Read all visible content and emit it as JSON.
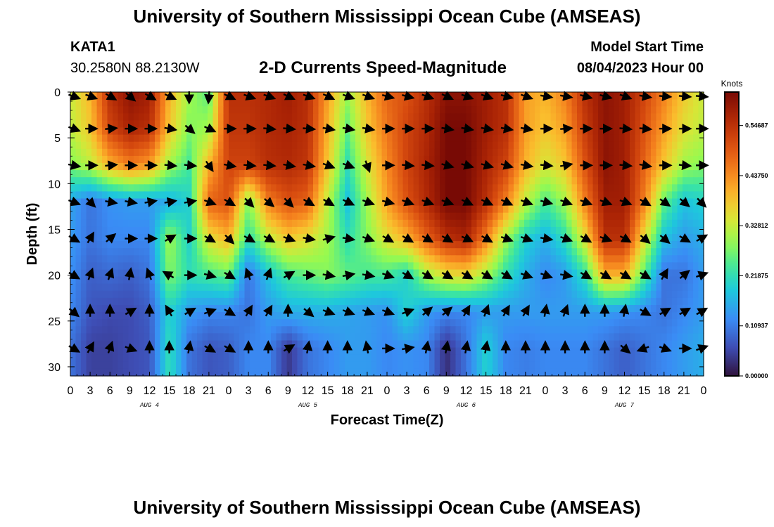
{
  "header": {
    "title": "University of Southern Mississippi Ocean Cube (AMSEAS)",
    "station_id": "KATA1",
    "coords": "30.2580N  88.2130W",
    "chart_title": "2-D Currents Speed-Magnitude",
    "start_label": "Model Start Time",
    "start_value": "08/04/2023 Hour 00"
  },
  "footer": {
    "title": "University of Southern Mississippi Ocean Cube (AMSEAS)"
  },
  "chart_data": {
    "type": "heatmap",
    "title": "2-D Currents Speed-Magnitude",
    "xlabel": "Forecast Time(Z)",
    "ylabel": "Depth (ft)",
    "x_range_hours": [
      0,
      96
    ],
    "ylim": [
      0,
      31
    ],
    "y_ticks": [
      0,
      5,
      10,
      15,
      20,
      25,
      30
    ],
    "x_tick_labels": [
      "0",
      "3",
      "6",
      "9",
      "12",
      "15",
      "18",
      "21",
      "0",
      "3",
      "6",
      "9",
      "12",
      "15",
      "18",
      "21",
      "0",
      "3",
      "6",
      "9",
      "12",
      "15",
      "18",
      "21",
      "0",
      "3",
      "6",
      "9",
      "12",
      "15",
      "18",
      "21",
      "0"
    ],
    "day_labels": [
      {
        "label": "AUG 4",
        "hour": 12
      },
      {
        "label": "AUG 5",
        "hour": 36
      },
      {
        "label": "AUG 6",
        "hour": 60
      },
      {
        "label": "AUG 7",
        "hour": 84
      }
    ],
    "colorbar": {
      "unit": "Knots",
      "min": 0.0,
      "max": 0.62,
      "tick_labels": [
        "0.54687",
        "0.43750",
        "0.32812",
        "0.21875",
        "0.10937",
        "0.00000"
      ],
      "tick_values": [
        0.54687,
        0.4375,
        0.32812,
        0.21875,
        0.10937,
        0.0
      ]
    },
    "depths_ft": [
      0,
      4,
      8,
      12,
      16,
      20,
      24,
      28
    ],
    "hours": [
      0,
      3,
      6,
      9,
      12,
      15,
      18,
      21,
      24,
      27,
      30,
      33,
      36,
      39,
      42,
      45,
      48,
      51,
      54,
      57,
      60,
      63,
      66,
      69,
      72,
      75,
      78,
      81,
      84,
      87,
      90,
      93,
      96
    ],
    "speed_knots": [
      [
        0.33,
        0.4,
        0.55,
        0.6,
        0.58,
        0.4,
        0.3,
        0.25,
        0.55,
        0.55,
        0.56,
        0.58,
        0.55,
        0.42,
        0.3,
        0.4,
        0.48,
        0.5,
        0.55,
        0.6,
        0.6,
        0.58,
        0.55,
        0.42,
        0.4,
        0.45,
        0.55,
        0.6,
        0.58,
        0.52,
        0.45,
        0.38,
        0.33
      ],
      [
        0.32,
        0.38,
        0.52,
        0.57,
        0.55,
        0.38,
        0.28,
        0.3,
        0.54,
        0.54,
        0.56,
        0.57,
        0.55,
        0.4,
        0.26,
        0.38,
        0.46,
        0.52,
        0.56,
        0.62,
        0.62,
        0.58,
        0.55,
        0.42,
        0.38,
        0.42,
        0.53,
        0.6,
        0.58,
        0.5,
        0.42,
        0.35,
        0.32
      ],
      [
        0.28,
        0.32,
        0.4,
        0.45,
        0.42,
        0.3,
        0.24,
        0.4,
        0.52,
        0.52,
        0.55,
        0.56,
        0.54,
        0.38,
        0.22,
        0.34,
        0.44,
        0.52,
        0.57,
        0.62,
        0.62,
        0.57,
        0.52,
        0.4,
        0.34,
        0.38,
        0.5,
        0.6,
        0.58,
        0.48,
        0.38,
        0.3,
        0.28
      ],
      [
        0.15,
        0.1,
        0.13,
        0.14,
        0.14,
        0.16,
        0.2,
        0.48,
        0.5,
        0.28,
        0.45,
        0.5,
        0.48,
        0.32,
        0.18,
        0.3,
        0.42,
        0.5,
        0.56,
        0.62,
        0.62,
        0.55,
        0.45,
        0.32,
        0.24,
        0.3,
        0.45,
        0.58,
        0.58,
        0.45,
        0.26,
        0.18,
        0.2
      ],
      [
        0.14,
        0.1,
        0.12,
        0.12,
        0.12,
        0.3,
        0.2,
        0.35,
        0.4,
        0.22,
        0.32,
        0.38,
        0.35,
        0.3,
        0.22,
        0.28,
        0.35,
        0.4,
        0.48,
        0.55,
        0.57,
        0.45,
        0.3,
        0.2,
        0.16,
        0.22,
        0.35,
        0.55,
        0.55,
        0.35,
        0.18,
        0.14,
        0.16
      ],
      [
        0.13,
        0.08,
        0.09,
        0.08,
        0.1,
        0.28,
        0.22,
        0.24,
        0.26,
        0.1,
        0.18,
        0.24,
        0.26,
        0.28,
        0.26,
        0.24,
        0.24,
        0.2,
        0.3,
        0.35,
        0.36,
        0.3,
        0.22,
        0.16,
        0.12,
        0.14,
        0.22,
        0.4,
        0.4,
        0.25,
        0.1,
        0.1,
        0.14
      ],
      [
        0.12,
        0.07,
        0.06,
        0.06,
        0.08,
        0.2,
        0.14,
        0.12,
        0.12,
        0.1,
        0.14,
        0.16,
        0.16,
        0.16,
        0.15,
        0.14,
        0.13,
        0.2,
        0.14,
        0.12,
        0.12,
        0.14,
        0.14,
        0.14,
        0.14,
        0.14,
        0.14,
        0.14,
        0.13,
        0.12,
        0.1,
        0.12,
        0.14
      ],
      [
        0.1,
        0.05,
        0.05,
        0.06,
        0.07,
        0.22,
        0.1,
        0.07,
        0.08,
        0.12,
        0.12,
        0.04,
        0.1,
        0.12,
        0.14,
        0.14,
        0.12,
        0.13,
        0.12,
        0.03,
        0.1,
        0.2,
        0.12,
        0.11,
        0.12,
        0.12,
        0.12,
        0.1,
        0.08,
        0.1,
        0.12,
        0.14,
        0.16
      ]
    ],
    "arrow_rows_ft": [
      0,
      4,
      8,
      12,
      16,
      20,
      24,
      28
    ],
    "arrow_dirs_deg": [
      [
        20,
        20,
        30,
        40,
        30,
        25,
        90,
        95,
        25,
        20,
        20,
        25,
        20,
        25,
        20,
        20,
        15,
        15,
        20,
        25,
        20,
        20,
        15,
        20,
        10,
        10,
        15,
        15,
        20,
        10,
        5,
        5,
        5
      ],
      [
        20,
        0,
        -5,
        0,
        0,
        10,
        40,
        25,
        0,
        0,
        5,
        5,
        5,
        10,
        10,
        10,
        0,
        0,
        0,
        10,
        10,
        10,
        10,
        10,
        0,
        -5,
        0,
        0,
        5,
        5,
        0,
        0,
        0
      ],
      [
        10,
        0,
        -5,
        0,
        0,
        5,
        5,
        55,
        10,
        5,
        5,
        10,
        10,
        20,
        20,
        70,
        0,
        5,
        5,
        15,
        15,
        15,
        15,
        10,
        5,
        -10,
        0,
        0,
        5,
        10,
        0,
        5,
        0
      ],
      [
        20,
        45,
        10,
        10,
        -10,
        -10,
        -10,
        20,
        30,
        45,
        40,
        45,
        30,
        30,
        25,
        20,
        15,
        20,
        20,
        20,
        25,
        25,
        25,
        20,
        15,
        20,
        20,
        20,
        20,
        30,
        35,
        40,
        45
      ],
      [
        30,
        -60,
        -40,
        0,
        0,
        -30,
        0,
        30,
        45,
        30,
        30,
        20,
        10,
        -15,
        10,
        20,
        30,
        30,
        30,
        30,
        25,
        30,
        20,
        20,
        10,
        20,
        30,
        20,
        30,
        40,
        40,
        30,
        -30
      ],
      [
        30,
        -70,
        -70,
        -80,
        -110,
        -150,
        0,
        15,
        30,
        -110,
        -70,
        -30,
        0,
        10,
        -10,
        10,
        20,
        30,
        30,
        30,
        30,
        30,
        30,
        20,
        20,
        10,
        30,
        30,
        30,
        30,
        -60,
        -40,
        -20
      ],
      [
        40,
        -90,
        -90,
        -30,
        -90,
        -120,
        -30,
        -20,
        30,
        -60,
        -60,
        -90,
        40,
        20,
        20,
        20,
        20,
        -20,
        -40,
        -40,
        -60,
        -70,
        -60,
        -60,
        -80,
        -70,
        -90,
        -90,
        -80,
        30,
        -30,
        -30,
        -30
      ],
      [
        30,
        -60,
        -70,
        20,
        -90,
        -90,
        -80,
        30,
        30,
        -90,
        -90,
        -30,
        -80,
        -90,
        -90,
        -100,
        0,
        -10,
        -80,
        -80,
        -80,
        -80,
        -90,
        -90,
        -90,
        -90,
        -90,
        -90,
        40,
        160,
        20,
        0,
        -20
      ]
    ]
  }
}
